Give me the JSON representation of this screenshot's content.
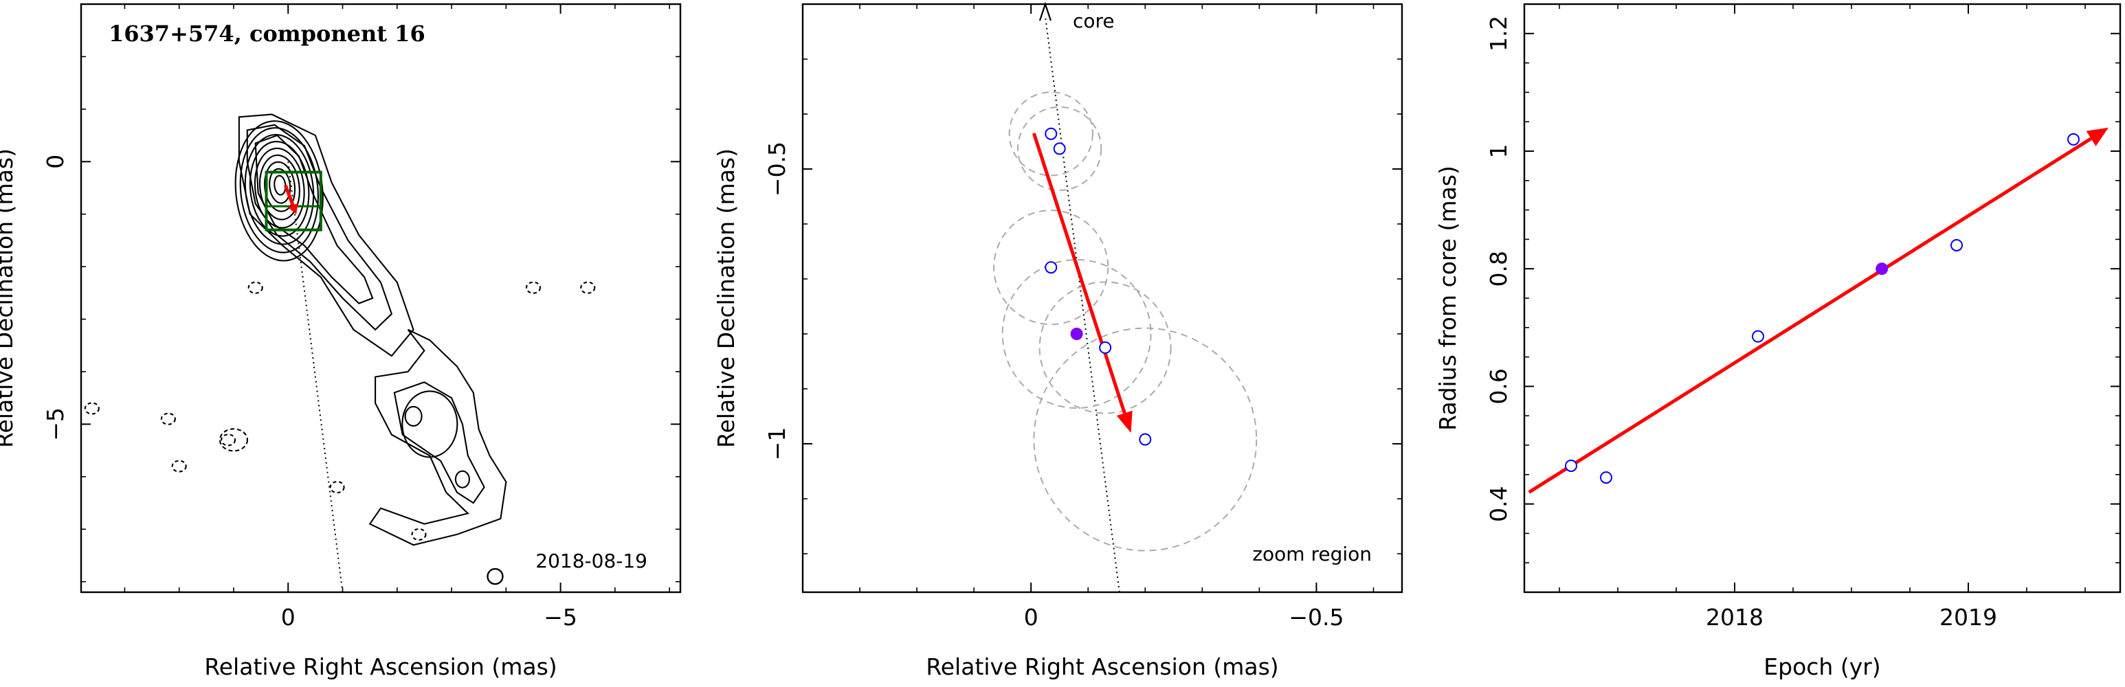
{
  "chart_data": [
    {
      "type": "contour",
      "title": "1637+574, component 16",
      "xlabel": "Relative Right Ascension (mas)",
      "ylabel": "Relative Declination (mas)",
      "xlim": [
        3.8,
        -7.2
      ],
      "ylim": [
        -8.2,
        3.0
      ],
      "xticks": [
        {
          "v": 0,
          "label": "0"
        },
        {
          "v": -5,
          "label": "−5"
        }
      ],
      "yticks": [
        {
          "v": 0,
          "label": "0"
        },
        {
          "v": -5,
          "label": "−5"
        }
      ],
      "date_label": "2018-08-19",
      "core_direction_line": [
        [
          0.0,
          0.0
        ],
        [
          -1.0,
          -8.2
        ]
      ],
      "motion_vector": {
        "from": [
          0.05,
          -0.45
        ],
        "to": [
          -0.15,
          -1.0
        ]
      },
      "zoom_box": {
        "x": [
          0.4,
          -0.6
        ],
        "y": [
          -0.2,
          -1.3
        ]
      },
      "inner_box": {
        "x": [
          0.4,
          -0.6
        ],
        "y": [
          -0.85,
          -1.3
        ]
      },
      "beam": {
        "x": -3.8,
        "y": -7.9,
        "r": 0.15
      },
      "contour_levels": 14,
      "colors": {
        "vector": "#ff0000",
        "box": "#006400",
        "line": "#000000"
      }
    },
    {
      "type": "scatter",
      "xlabel": "Relative Right Ascension (mas)",
      "ylabel": "Relative Declination (mas)",
      "xlim": [
        0.4,
        -0.65
      ],
      "ylim": [
        -1.27,
        -0.2
      ],
      "xticks": [
        {
          "v": 0,
          "label": "0"
        },
        {
          "v": -0.5,
          "label": "−0.5"
        }
      ],
      "yticks": [
        {
          "v": -0.5,
          "label": "−0.5"
        },
        {
          "v": -1,
          "label": "−1"
        }
      ],
      "core_label": "core",
      "zoom_label": "zoom region",
      "core_line": {
        "from": [
          -0.155,
          -1.27
        ],
        "to": [
          -0.025,
          -0.2
        ]
      },
      "points": [
        {
          "x": -0.035,
          "y": -0.436,
          "r": 0.073,
          "filled": false
        },
        {
          "x": -0.05,
          "y": -0.463,
          "r": 0.073,
          "filled": false
        },
        {
          "x": -0.035,
          "y": -0.679,
          "r": 0.1,
          "filled": false
        },
        {
          "x": -0.13,
          "y": -0.825,
          "r": 0.115,
          "filled": false
        },
        {
          "x": -0.2,
          "y": -0.992,
          "r": 0.195,
          "filled": false
        },
        {
          "x": -0.08,
          "y": -0.8,
          "r": 0.13,
          "filled": true
        }
      ],
      "motion_vector": {
        "from": [
          -0.005,
          -0.435
        ],
        "to": [
          -0.175,
          -0.98
        ]
      },
      "colors": {
        "vector": "#ff0000",
        "open_point": "#0000ff",
        "filled_point": "#7f00ff",
        "circle": "#aaaaaa"
      }
    },
    {
      "type": "scatter",
      "xlabel": "Epoch (yr)",
      "ylabel": "Radius from core (mas)",
      "xlim": [
        2017.1,
        2019.65
      ],
      "ylim": [
        0.25,
        1.25
      ],
      "xticks": [
        {
          "v": 2018,
          "label": "2018"
        },
        {
          "v": 2019,
          "label": "2019"
        }
      ],
      "yticks": [
        {
          "v": 0.4,
          "label": "0.4"
        },
        {
          "v": 0.6,
          "label": "0.6"
        },
        {
          "v": 0.8,
          "label": "0.8"
        },
        {
          "v": 1,
          "label": "1"
        },
        {
          "v": 1.2,
          "label": "1.2"
        }
      ],
      "points": [
        {
          "x": 2017.3,
          "y": 0.465,
          "filled": false
        },
        {
          "x": 2017.45,
          "y": 0.445,
          "filled": false
        },
        {
          "x": 2018.1,
          "y": 0.685,
          "filled": false
        },
        {
          "x": 2018.63,
          "y": 0.8,
          "filled": true
        },
        {
          "x": 2018.95,
          "y": 0.84,
          "filled": false
        },
        {
          "x": 2019.45,
          "y": 1.02,
          "filled": false
        }
      ],
      "fit_vector": {
        "from": [
          2017.12,
          0.42
        ],
        "to": [
          2019.6,
          1.04
        ]
      },
      "colors": {
        "vector": "#ff0000",
        "open_point": "#0000ff",
        "filled_point": "#7f00ff"
      }
    }
  ]
}
